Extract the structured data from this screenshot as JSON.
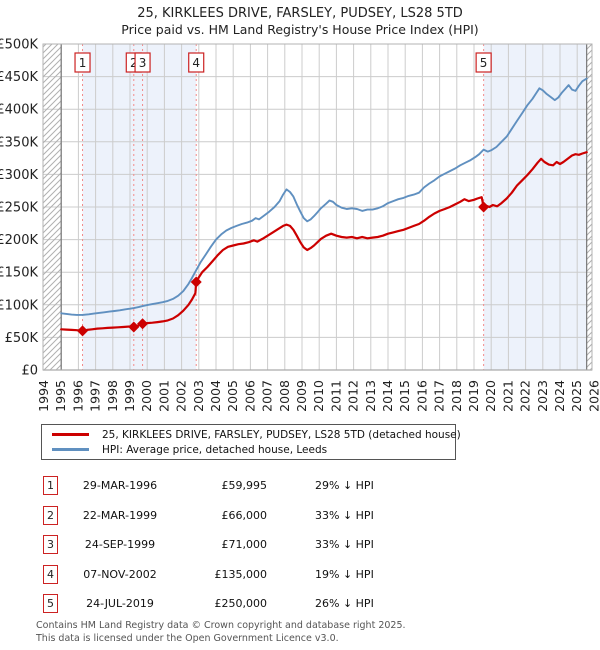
{
  "page": {
    "title": "25, KIRKLEES DRIVE, FARSLEY, PUDSEY, LS28 5TD",
    "subtitle": "Price paid vs. HM Land Registry's House Price Index (HPI)"
  },
  "colors": {
    "price_line": "#cc0000",
    "hpi_line": "#6090c0",
    "band_fill": "#edf2fb",
    "grid": "#cccccc",
    "plot_border": "#b3b3b3",
    "zero_axis": "#888888",
    "data_edge_line": "#777777",
    "sale_dash": "#f38a8a",
    "num_box_border": "#cc2222",
    "hatch": "#b0b0b0",
    "axis_text": "#222222"
  },
  "chart_data": {
    "type": "line",
    "title": "25, KIRKLEES DRIVE, FARSLEY, PUDSEY, LS28 5TD",
    "subtitle": "Price paid vs. HM Land Registry's House Price Index (HPI)",
    "unit": "GBP thousands",
    "ylim_k": [
      0,
      500
    ],
    "y_ticks": [
      {
        "v": 0,
        "label": "£0"
      },
      {
        "v": 50,
        "label": "£50K"
      },
      {
        "v": 100,
        "label": "£100K"
      },
      {
        "v": 150,
        "label": "£150K"
      },
      {
        "v": 200,
        "label": "£200K"
      },
      {
        "v": 250,
        "label": "£250K"
      },
      {
        "v": 300,
        "label": "£300K"
      },
      {
        "v": 350,
        "label": "£350K"
      },
      {
        "v": 400,
        "label": "£400K"
      },
      {
        "v": 450,
        "label": "£450K"
      },
      {
        "v": 500,
        "label": "£500K"
      }
    ],
    "x_ticks": [
      "1994",
      "1995",
      "1996",
      "1997",
      "1998",
      "1999",
      "2000",
      "2001",
      "2002",
      "2003",
      "2004",
      "2005",
      "2006",
      "2007",
      "2008",
      "2009",
      "2010",
      "2011",
      "2012",
      "2013",
      "2014",
      "2015",
      "2016",
      "2017",
      "2018",
      "2019",
      "2020",
      "2021",
      "2022",
      "2023",
      "2024",
      "2025",
      "2026"
    ],
    "x_start_year": 1994,
    "x_end_year": 2026,
    "data_start_year": 1995.0,
    "data_end_year": 2025.55,
    "grid": true,
    "legend_position": "below",
    "bands": [
      [
        1996.24,
        2002.85
      ],
      [
        2019.56,
        2025.55
      ]
    ],
    "sales": [
      {
        "n": "1",
        "date": "29-MAR-1996",
        "year": 1996.24,
        "price_label": "£59,995",
        "price_k": 60.0,
        "delta": "29% ↓ HPI"
      },
      {
        "n": "2",
        "date": "22-MAR-1999",
        "year": 1999.22,
        "price_label": "£66,000",
        "price_k": 66.0,
        "delta": "33% ↓ HPI"
      },
      {
        "n": "3",
        "date": "24-SEP-1999",
        "year": 1999.73,
        "price_label": "£71,000",
        "price_k": 71.0,
        "delta": "33% ↓ HPI"
      },
      {
        "n": "4",
        "date": "07-NOV-2002",
        "year": 2002.85,
        "price_label": "£135,000",
        "price_k": 135.0,
        "delta": "19% ↓ HPI"
      },
      {
        "n": "5",
        "date": "24-JUL-2019",
        "year": 2019.56,
        "price_label": "£250,000",
        "price_k": 250.0,
        "delta": "26% ↓ HPI"
      }
    ],
    "series": [
      {
        "name": "25, KIRKLEES DRIVE, FARSLEY, PUDSEY, LS28 5TD (detached house)",
        "color": "#cc0000",
        "width": 2.2,
        "points": [
          [
            1995.0,
            62.5
          ],
          [
            1995.3,
            62
          ],
          [
            1995.6,
            61.5
          ],
          [
            1995.9,
            61
          ],
          [
            1996.1,
            60.5
          ],
          [
            1996.24,
            60
          ],
          [
            1996.5,
            61.5
          ],
          [
            1996.8,
            62.5
          ],
          [
            1997.1,
            63.5
          ],
          [
            1997.4,
            64
          ],
          [
            1997.7,
            64.5
          ],
          [
            1998.0,
            65
          ],
          [
            1998.3,
            65.5
          ],
          [
            1998.6,
            66
          ],
          [
            1998.9,
            66.5
          ],
          [
            1999.1,
            67
          ],
          [
            1999.22,
            66
          ],
          [
            1999.45,
            68
          ],
          [
            1999.6,
            69.5
          ],
          [
            1999.73,
            71
          ],
          [
            2000.0,
            72
          ],
          [
            2000.3,
            72.5
          ],
          [
            2000.6,
            73.5
          ],
          [
            2000.9,
            74.5
          ],
          [
            2001.2,
            76
          ],
          [
            2001.5,
            79
          ],
          [
            2001.8,
            84
          ],
          [
            2002.1,
            91
          ],
          [
            2002.4,
            100
          ],
          [
            2002.6,
            108
          ],
          [
            2002.8,
            118
          ],
          [
            2002.85,
            135
          ],
          [
            2003.0,
            142
          ],
          [
            2003.2,
            150
          ],
          [
            2003.5,
            158
          ],
          [
            2003.8,
            167
          ],
          [
            2004.1,
            176
          ],
          [
            2004.4,
            184
          ],
          [
            2004.7,
            189
          ],
          [
            2005.0,
            191
          ],
          [
            2005.3,
            193
          ],
          [
            2005.6,
            194
          ],
          [
            2005.9,
            196
          ],
          [
            2006.2,
            199
          ],
          [
            2006.4,
            197
          ],
          [
            2006.7,
            201
          ],
          [
            2007.0,
            206
          ],
          [
            2007.3,
            211
          ],
          [
            2007.6,
            216
          ],
          [
            2007.9,
            221
          ],
          [
            2008.1,
            223
          ],
          [
            2008.3,
            221
          ],
          [
            2008.5,
            215
          ],
          [
            2008.7,
            206
          ],
          [
            2008.9,
            196
          ],
          [
            2009.1,
            188
          ],
          [
            2009.3,
            184
          ],
          [
            2009.5,
            187
          ],
          [
            2009.7,
            191
          ],
          [
            2009.9,
            196
          ],
          [
            2010.1,
            201
          ],
          [
            2010.4,
            206
          ],
          [
            2010.7,
            209
          ],
          [
            2011.0,
            206
          ],
          [
            2011.3,
            204
          ],
          [
            2011.6,
            203
          ],
          [
            2011.9,
            204
          ],
          [
            2012.2,
            202
          ],
          [
            2012.5,
            204
          ],
          [
            2012.8,
            202
          ],
          [
            2013.1,
            203
          ],
          [
            2013.4,
            204
          ],
          [
            2013.7,
            206
          ],
          [
            2014.0,
            209
          ],
          [
            2014.3,
            211
          ],
          [
            2014.6,
            213
          ],
          [
            2014.9,
            215
          ],
          [
            2015.2,
            218
          ],
          [
            2015.5,
            221
          ],
          [
            2015.8,
            224
          ],
          [
            2016.1,
            229
          ],
          [
            2016.4,
            235
          ],
          [
            2016.7,
            240
          ],
          [
            2017.0,
            244
          ],
          [
            2017.3,
            247
          ],
          [
            2017.6,
            250
          ],
          [
            2017.9,
            254
          ],
          [
            2018.2,
            258
          ],
          [
            2018.45,
            262
          ],
          [
            2018.7,
            259
          ],
          [
            2019.0,
            261
          ],
          [
            2019.2,
            263
          ],
          [
            2019.45,
            265
          ],
          [
            2019.56,
            250
          ],
          [
            2019.7,
            252
          ],
          [
            2019.9,
            250
          ],
          [
            2020.1,
            253
          ],
          [
            2020.35,
            251
          ],
          [
            2020.6,
            256
          ],
          [
            2020.9,
            263
          ],
          [
            2021.2,
            272
          ],
          [
            2021.5,
            283
          ],
          [
            2021.8,
            291
          ],
          [
            2022.1,
            299
          ],
          [
            2022.4,
            308
          ],
          [
            2022.7,
            318
          ],
          [
            2022.9,
            324
          ],
          [
            2023.1,
            319
          ],
          [
            2023.35,
            315
          ],
          [
            2023.6,
            314
          ],
          [
            2023.8,
            319
          ],
          [
            2024.0,
            316
          ],
          [
            2024.2,
            319
          ],
          [
            2024.45,
            324
          ],
          [
            2024.7,
            329
          ],
          [
            2024.9,
            331
          ],
          [
            2025.1,
            330
          ],
          [
            2025.3,
            332
          ],
          [
            2025.55,
            334
          ]
        ]
      },
      {
        "name": "HPI: Average price, detached house, Leeds",
        "color": "#6090c0",
        "width": 1.9,
        "points": [
          [
            1995.0,
            87
          ],
          [
            1995.3,
            86
          ],
          [
            1995.6,
            85
          ],
          [
            1995.9,
            84.5
          ],
          [
            1996.24,
            84.5
          ],
          [
            1996.6,
            85.5
          ],
          [
            1996.9,
            86.5
          ],
          [
            1997.2,
            87.5
          ],
          [
            1997.5,
            88.5
          ],
          [
            1997.8,
            89.5
          ],
          [
            1998.1,
            90.5
          ],
          [
            1998.4,
            91.5
          ],
          [
            1998.7,
            93
          ],
          [
            1999.0,
            94
          ],
          [
            1999.22,
            95
          ],
          [
            1999.5,
            96.5
          ],
          [
            1999.73,
            98
          ],
          [
            2000.0,
            99.5
          ],
          [
            2000.3,
            101
          ],
          [
            2000.6,
            102.5
          ],
          [
            2000.9,
            104
          ],
          [
            2001.2,
            106
          ],
          [
            2001.5,
            109
          ],
          [
            2001.8,
            114
          ],
          [
            2002.1,
            121
          ],
          [
            2002.4,
            132
          ],
          [
            2002.6,
            141
          ],
          [
            2002.85,
            153
          ],
          [
            2003.1,
            165
          ],
          [
            2003.4,
            177
          ],
          [
            2003.7,
            189
          ],
          [
            2004.0,
            200
          ],
          [
            2004.3,
            208
          ],
          [
            2004.6,
            214
          ],
          [
            2004.9,
            218
          ],
          [
            2005.2,
            221
          ],
          [
            2005.5,
            224
          ],
          [
            2005.8,
            226
          ],
          [
            2006.1,
            229
          ],
          [
            2006.3,
            233
          ],
          [
            2006.5,
            231
          ],
          [
            2006.8,
            237
          ],
          [
            2007.1,
            243
          ],
          [
            2007.4,
            250
          ],
          [
            2007.7,
            259
          ],
          [
            2007.9,
            269
          ],
          [
            2008.1,
            277
          ],
          [
            2008.3,
            273
          ],
          [
            2008.5,
            266
          ],
          [
            2008.7,
            254
          ],
          [
            2008.9,
            243
          ],
          [
            2009.1,
            233
          ],
          [
            2009.3,
            228
          ],
          [
            2009.5,
            231
          ],
          [
            2009.7,
            236
          ],
          [
            2009.9,
            242
          ],
          [
            2010.1,
            248
          ],
          [
            2010.4,
            255
          ],
          [
            2010.6,
            260
          ],
          [
            2010.8,
            258
          ],
          [
            2011.0,
            253
          ],
          [
            2011.3,
            249
          ],
          [
            2011.6,
            247
          ],
          [
            2011.9,
            248
          ],
          [
            2012.2,
            247
          ],
          [
            2012.5,
            244
          ],
          [
            2012.8,
            246
          ],
          [
            2013.1,
            246
          ],
          [
            2013.4,
            248
          ],
          [
            2013.7,
            251
          ],
          [
            2014.0,
            256
          ],
          [
            2014.3,
            259
          ],
          [
            2014.6,
            262
          ],
          [
            2014.9,
            264
          ],
          [
            2015.2,
            267
          ],
          [
            2015.5,
            269
          ],
          [
            2015.8,
            272
          ],
          [
            2016.1,
            280
          ],
          [
            2016.4,
            286
          ],
          [
            2016.7,
            291
          ],
          [
            2017.0,
            297
          ],
          [
            2017.3,
            301
          ],
          [
            2017.6,
            305
          ],
          [
            2017.9,
            309
          ],
          [
            2018.2,
            314
          ],
          [
            2018.5,
            318
          ],
          [
            2018.8,
            322
          ],
          [
            2019.1,
            327
          ],
          [
            2019.3,
            331
          ],
          [
            2019.56,
            338
          ],
          [
            2019.8,
            335
          ],
          [
            2020.0,
            337
          ],
          [
            2020.3,
            342
          ],
          [
            2020.6,
            350
          ],
          [
            2020.9,
            358
          ],
          [
            2021.2,
            370
          ],
          [
            2021.5,
            382
          ],
          [
            2021.8,
            394
          ],
          [
            2022.1,
            406
          ],
          [
            2022.4,
            416
          ],
          [
            2022.6,
            424
          ],
          [
            2022.8,
            432
          ],
          [
            2023.0,
            429
          ],
          [
            2023.2,
            424
          ],
          [
            2023.5,
            418
          ],
          [
            2023.7,
            414
          ],
          [
            2023.9,
            418
          ],
          [
            2024.1,
            425
          ],
          [
            2024.3,
            431
          ],
          [
            2024.5,
            437
          ],
          [
            2024.7,
            430
          ],
          [
            2024.9,
            428
          ],
          [
            2025.1,
            436
          ],
          [
            2025.3,
            443
          ],
          [
            2025.55,
            447
          ]
        ]
      }
    ]
  },
  "legend": {
    "entries": [
      {
        "label": "25, KIRKLEES DRIVE, FARSLEY, PUDSEY, LS28 5TD (detached house)",
        "color": "#cc0000"
      },
      {
        "label": "HPI: Average price, detached house, Leeds",
        "color": "#6090c0"
      }
    ]
  },
  "table": {
    "rows": [
      {
        "num": "1",
        "date": "29-MAR-1996",
        "price": "£59,995",
        "delta": "29% ↓ HPI"
      },
      {
        "num": "2",
        "date": "22-MAR-1999",
        "price": "£66,000",
        "delta": "33% ↓ HPI"
      },
      {
        "num": "3",
        "date": "24-SEP-1999",
        "price": "£71,000",
        "delta": "33% ↓ HPI"
      },
      {
        "num": "4",
        "date": "07-NOV-2002",
        "price": "£135,000",
        "delta": "19% ↓ HPI"
      },
      {
        "num": "5",
        "date": "24-JUL-2019",
        "price": "£250,000",
        "delta": "26% ↓ HPI"
      }
    ]
  },
  "footer": {
    "line1": "Contains HM Land Registry data © Crown copyright and database right 2025.",
    "line2": "This data is licensed under the Open Government Licence v3.0."
  }
}
